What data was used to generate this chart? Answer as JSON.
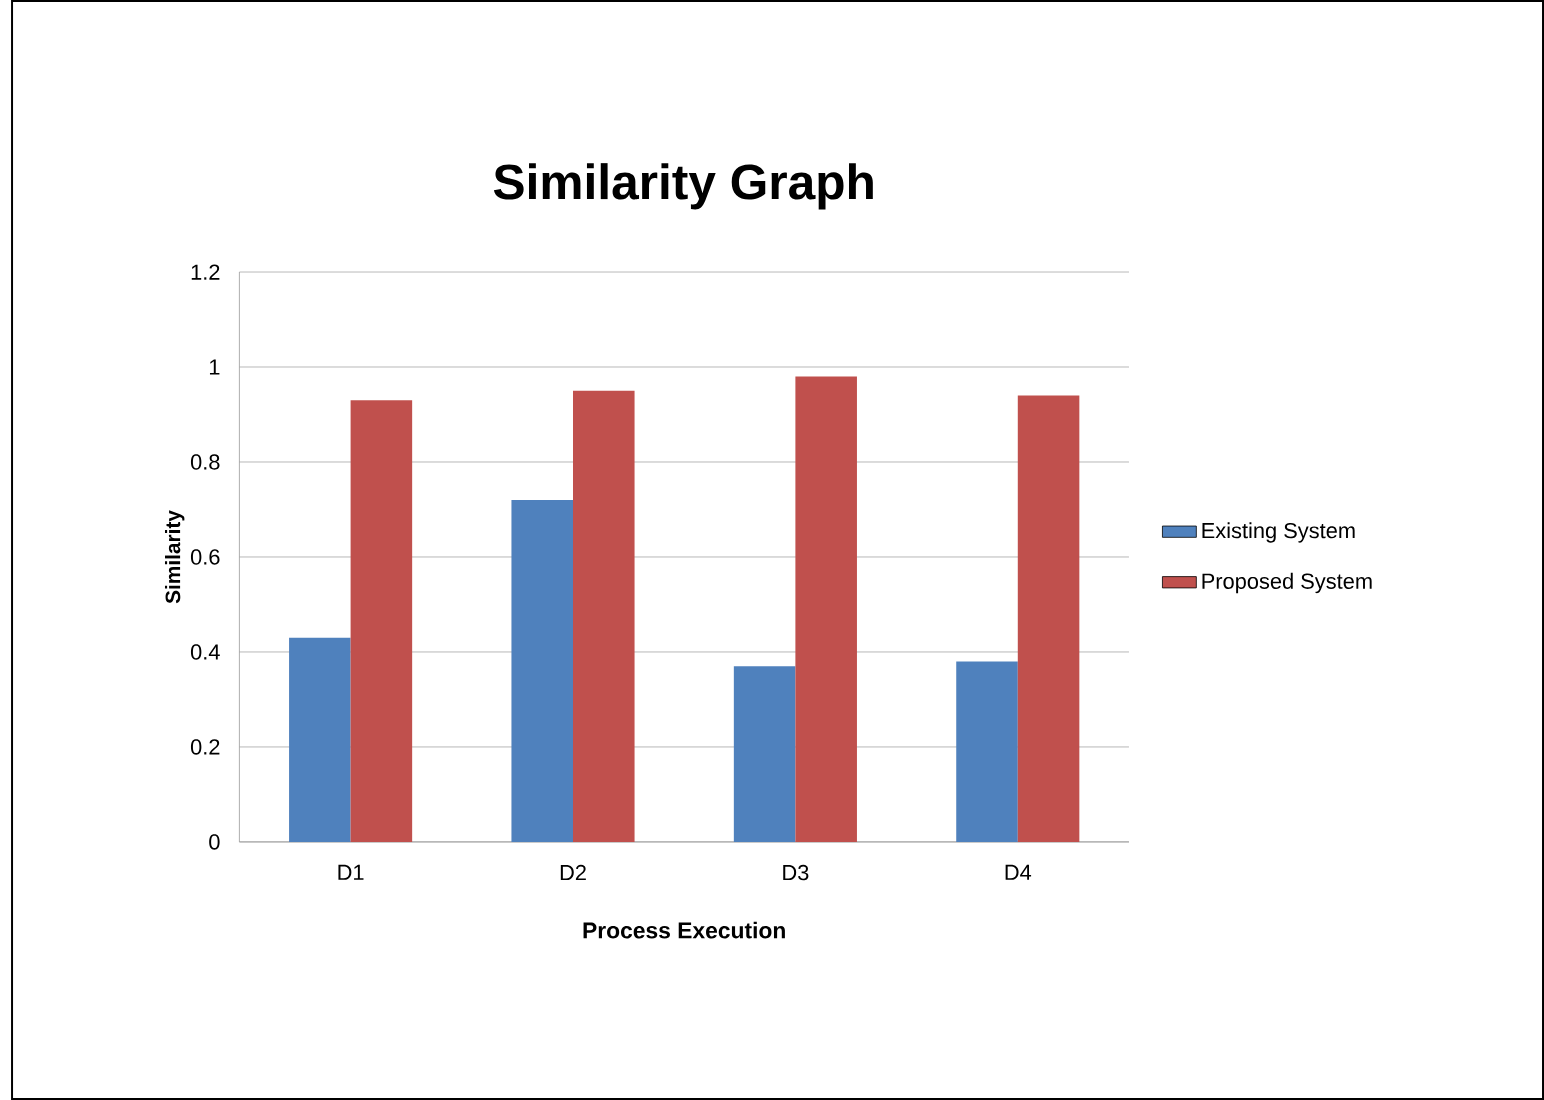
{
  "chart_data": {
    "type": "bar",
    "title": "Similarity Graph",
    "xlabel": "Process Execution",
    "ylabel": "Similarity",
    "categories": [
      "D1",
      "D2",
      "D3",
      "D4"
    ],
    "series": [
      {
        "name": "Existing System",
        "color": "#4f81bd",
        "values": [
          0.43,
          0.72,
          0.37,
          0.38
        ]
      },
      {
        "name": "Proposed System",
        "color": "#c0504d",
        "values": [
          0.93,
          0.95,
          0.98,
          0.94
        ]
      }
    ],
    "ylim": [
      0,
      1.2
    ],
    "yticks": [
      0,
      0.2,
      0.4,
      0.6,
      0.8,
      1,
      1.2
    ],
    "grid": "y",
    "legend": "right"
  }
}
